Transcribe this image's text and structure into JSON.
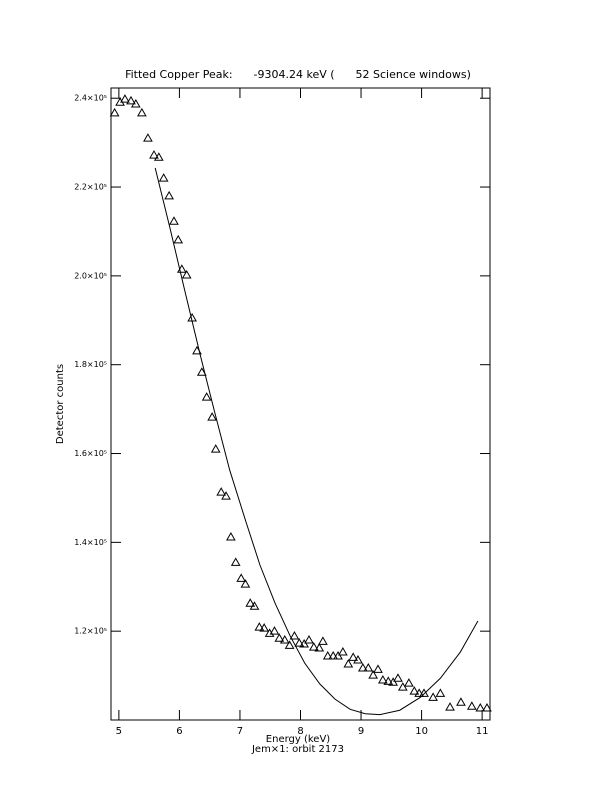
{
  "chart_data": {
    "type": "scatter",
    "title": "Fitted Copper Peak:      -9304.24 keV (      52 Science windows)",
    "x_label": "Energy (keV)",
    "subtitle": "Jem×1: orbit 2173",
    "y_label": "Detector counts",
    "xlim": [
      4.87,
      11.13
    ],
    "xticks": [
      5,
      6,
      7,
      8,
      9,
      10,
      11
    ],
    "ylim": [
      100000,
      242300
    ],
    "yticks": [
      {
        "value": 120000,
        "label": "1.2×10⁵"
      },
      {
        "value": 140000,
        "label": "1.4×10⁵"
      },
      {
        "value": 160000,
        "label": "1.6×10⁵"
      },
      {
        "value": 180000,
        "label": "1.8×10⁵"
      },
      {
        "value": 200000,
        "label": "2.0×10⁵"
      },
      {
        "value": 220000,
        "label": "2.2×10⁵"
      },
      {
        "value": 240000,
        "label": "2.4×10⁵"
      }
    ],
    "color": "#000000",
    "series": [
      {
        "type": "scatter",
        "marker": "triangle",
        "x": [
          4.93,
          5.02,
          5.1,
          5.2,
          5.28,
          5.38,
          5.48,
          5.58,
          5.66,
          5.74,
          5.83,
          5.91,
          5.98,
          6.04,
          6.12,
          6.21,
          6.29,
          6.37,
          6.45,
          6.54,
          6.6,
          6.69,
          6.77,
          6.85,
          6.93,
          7.02,
          7.09,
          7.17,
          7.24,
          7.32,
          7.4,
          7.49,
          7.57,
          7.65,
          7.74,
          7.82,
          7.9,
          7.98,
          8.06,
          8.14,
          8.22,
          8.31,
          8.37,
          8.45,
          8.54,
          8.62,
          8.7,
          8.79,
          8.87,
          8.95,
          9.03,
          9.12,
          9.2,
          9.28,
          9.36,
          9.45,
          9.53,
          9.61,
          9.69,
          9.79,
          9.88,
          9.96,
          10.04,
          10.19,
          10.31,
          10.47,
          10.65,
          10.83,
          10.97,
          11.08
        ],
        "values": [
          236700,
          239100,
          239800,
          239400,
          238700,
          236700,
          231000,
          227200,
          226700,
          222000,
          218000,
          212300,
          208100,
          201500,
          200200,
          190500,
          183100,
          178300,
          172700,
          168200,
          161000,
          151300,
          150400,
          141200,
          135500,
          131900,
          130600,
          126300,
          125600,
          120900,
          120700,
          119500,
          120000,
          118400,
          118000,
          116800,
          118900,
          117300,
          117100,
          118000,
          116400,
          116200,
          117700,
          114400,
          114400,
          114400,
          115300,
          112600,
          114100,
          113500,
          111700,
          111700,
          110100,
          111400,
          109000,
          108700,
          108500,
          109400,
          107400,
          108300,
          106500,
          106000,
          106000,
          105100,
          106000,
          102900,
          104000,
          103100,
          102700,
          102700
        ]
      },
      {
        "type": "line",
        "x": [
          5.6,
          5.84,
          6.09,
          6.34,
          6.59,
          6.83,
          7.09,
          7.33,
          7.58,
          7.83,
          8.07,
          8.32,
          8.57,
          8.82,
          9.07,
          9.31,
          9.64,
          9.98,
          10.31,
          10.64,
          10.93
        ],
        "values": [
          224300,
          211000,
          196600,
          182400,
          168900,
          156300,
          145000,
          134900,
          126300,
          118900,
          112800,
          108100,
          104700,
          102400,
          101400,
          101200,
          102200,
          105100,
          109400,
          115300,
          122300
        ]
      }
    ]
  }
}
